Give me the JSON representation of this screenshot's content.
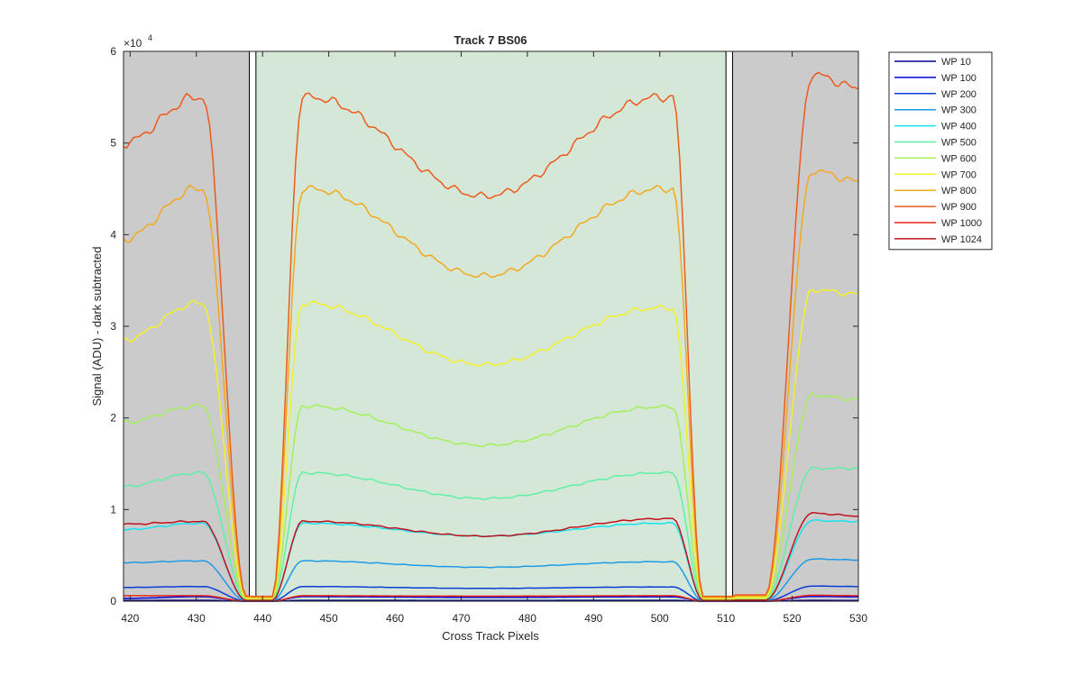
{
  "chart_data": {
    "type": "line",
    "title": "Track 7  BS06",
    "xlabel": "Cross Track Pixels",
    "ylabel": "Signal (ADU) - dark subtracted",
    "y_exponent_label": "×10",
    "y_exponent_power": "4",
    "xlim": [
      419,
      530
    ],
    "ylim": [
      0,
      60000
    ],
    "xticks": [
      420,
      430,
      440,
      450,
      460,
      470,
      480,
      490,
      500,
      510,
      520,
      530
    ],
    "yticks": [
      0,
      10000,
      20000,
      30000,
      40000,
      50000,
      60000
    ],
    "ytick_labels": [
      "0",
      "1",
      "2",
      "3",
      "4",
      "5",
      "6"
    ],
    "grid": false,
    "legend_position": "outside-top-right",
    "regions": [
      {
        "x0": 419,
        "x1": 438,
        "color": "#cbcbcb"
      },
      {
        "x0": 439,
        "x1": 510,
        "color": "#d5e8d8"
      },
      {
        "x0": 511,
        "x1": 530,
        "color": "#cbcbcb"
      }
    ],
    "boundary_boxes": [
      {
        "x0": 438,
        "x1": 439
      },
      {
        "x0": 510,
        "x1": 511
      }
    ],
    "series": [
      {
        "name": "WP 10",
        "color": "#00008f",
        "profile": {
          "edge": 80,
          "c_left": 90,
          "c_right": 90,
          "c_mid": 80,
          "r_right": 85,
          "r_left": 80
        }
      },
      {
        "name": "WP 100",
        "color": "#0000dd",
        "profile": {
          "edge": 300,
          "c_left": 500,
          "c_right": 480,
          "c_mid": 420,
          "r_right": 520,
          "r_left": 480
        }
      },
      {
        "name": "WP 200",
        "color": "#0a3dd6",
        "profile": {
          "edge": 1500,
          "c_left": 1600,
          "c_right": 1550,
          "c_mid": 1400,
          "r_right": 1650,
          "r_left": 1600
        }
      },
      {
        "name": "WP 300",
        "color": "#1d9be6",
        "profile": {
          "edge": 4200,
          "c_left": 4400,
          "c_right": 4300,
          "c_mid": 3700,
          "r_right": 4600,
          "r_left": 4500
        }
      },
      {
        "name": "WP 400",
        "color": "#19e2f0",
        "profile": {
          "edge": 7800,
          "c_left": 8500,
          "c_right": 8500,
          "c_mid": 7100,
          "r_right": 8800,
          "r_left": 8700
        }
      },
      {
        "name": "WP 500",
        "color": "#5ff0a5",
        "profile": {
          "edge": 12500,
          "c_left": 14000,
          "c_right": 14000,
          "c_mid": 11200,
          "r_right": 14500,
          "r_left": 14500
        }
      },
      {
        "name": "WP 600",
        "color": "#a4f05a",
        "profile": {
          "edge": 19500,
          "c_left": 21300,
          "c_right": 21200,
          "c_mid": 17000,
          "r_right": 22500,
          "r_left": 22000
        }
      },
      {
        "name": "WP 700",
        "color": "#f4f028",
        "profile": {
          "edge": 28500,
          "c_left": 32500,
          "c_right": 32000,
          "c_mid": 25800,
          "r_right": 34000,
          "r_left": 33500
        }
      },
      {
        "name": "WP 800",
        "color": "#f3a81e",
        "profile": {
          "edge": 39500,
          "c_left": 45000,
          "c_right": 45000,
          "c_mid": 35500,
          "r_right": 47000,
          "r_left": 45800
        }
      },
      {
        "name": "WP 900",
        "color": "#ee5a1d",
        "profile": {
          "edge": 50000,
          "c_left": 55000,
          "c_right": 55000,
          "c_mid": 44200,
          "r_right": 57500,
          "r_left": 56000
        }
      },
      {
        "name": "WP 1000",
        "color": "#ea2a16",
        "profile": {
          "edge": 600,
          "c_left": 600,
          "c_right": 600,
          "c_mid": 550,
          "r_right": 650,
          "r_left": 600
        }
      },
      {
        "name": "WP 1024",
        "color": "#c1121c",
        "profile": {
          "edge": 8400,
          "c_left": 8700,
          "c_right": 9000,
          "c_mid": 7100,
          "r_right": 9600,
          "r_left": 9300
        }
      }
    ]
  }
}
